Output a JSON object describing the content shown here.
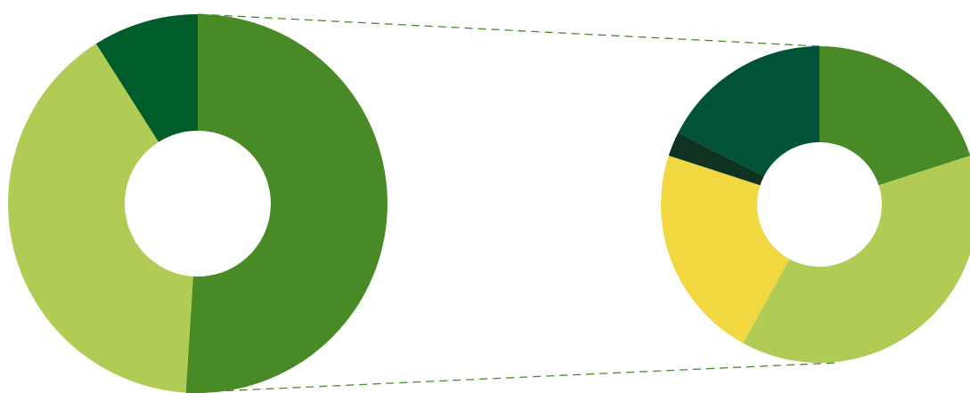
{
  "chart_data": [
    {
      "type": "pie",
      "style": "donut",
      "role": "main",
      "slices": [
        {
          "value": 51,
          "color": "#488a25"
        },
        {
          "value": 40,
          "color": "#b0cc54"
        },
        {
          "value": 9,
          "color": "#005c28"
        }
      ],
      "exploded_slice_index": 0
    },
    {
      "type": "pie",
      "style": "donut",
      "role": "detail",
      "slices": [
        {
          "value": 20,
          "color": "#488a25"
        },
        {
          "value": 38,
          "color": "#b0cc54"
        },
        {
          "value": 22,
          "color": "#f1d740"
        },
        {
          "value": 2.5,
          "color": "#0f3320"
        },
        {
          "value": 17.5,
          "color": "#005238"
        }
      ]
    }
  ],
  "connector": {
    "style": "dashed",
    "color": "#4a8a2a"
  }
}
